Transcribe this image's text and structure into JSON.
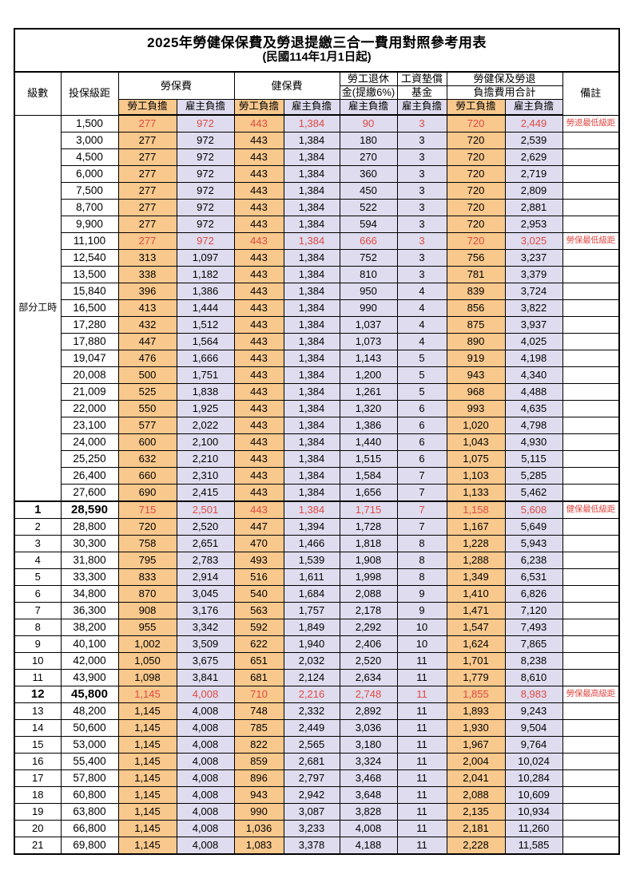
{
  "page": {
    "title": "2025年勞健保保費及勞退提繳三合一費用對照參考用表",
    "subtitle": "(民國114年1月1日起)"
  },
  "header": {
    "level": "級數",
    "bracket": "投保級距",
    "labor_insurance": "勞保費",
    "health_insurance": "健保費",
    "pension_line1": "勞工退休",
    "pension_line2": "金(提繳6%)",
    "wage_fund_line1": "工資墊償",
    "wage_fund_line2": "基金",
    "total_line1": "勞健保及勞退",
    "total_line2": "負擔費用合計",
    "remark": "備註",
    "employee_label": "勞工負擔",
    "employer_label": "雇主負擔"
  },
  "part_time_label": "部分工時",
  "part_time_row_count": 23,
  "colors": {
    "employee_bg": "#f8c88d",
    "employer_bg": "#dedcee",
    "highlight_red": "#e04a44",
    "border": "#000000"
  },
  "rows": [
    {
      "level": "",
      "bracket": "1,500",
      "li_emp": "277",
      "li_er": "972",
      "hi_emp": "443",
      "hi_er": "1,384",
      "pension": "90",
      "fund": "3",
      "tot_emp": "720",
      "tot_er": "2,449",
      "remark": "勞退最低級距",
      "red": true,
      "bold": false
    },
    {
      "level": "",
      "bracket": "3,000",
      "li_emp": "277",
      "li_er": "972",
      "hi_emp": "443",
      "hi_er": "1,384",
      "pension": "180",
      "fund": "3",
      "tot_emp": "720",
      "tot_er": "2,539",
      "remark": "",
      "red": false,
      "bold": false
    },
    {
      "level": "",
      "bracket": "4,500",
      "li_emp": "277",
      "li_er": "972",
      "hi_emp": "443",
      "hi_er": "1,384",
      "pension": "270",
      "fund": "3",
      "tot_emp": "720",
      "tot_er": "2,629",
      "remark": "",
      "red": false,
      "bold": false
    },
    {
      "level": "",
      "bracket": "6,000",
      "li_emp": "277",
      "li_er": "972",
      "hi_emp": "443",
      "hi_er": "1,384",
      "pension": "360",
      "fund": "3",
      "tot_emp": "720",
      "tot_er": "2,719",
      "remark": "",
      "red": false,
      "bold": false
    },
    {
      "level": "",
      "bracket": "7,500",
      "li_emp": "277",
      "li_er": "972",
      "hi_emp": "443",
      "hi_er": "1,384",
      "pension": "450",
      "fund": "3",
      "tot_emp": "720",
      "tot_er": "2,809",
      "remark": "",
      "red": false,
      "bold": false
    },
    {
      "level": "",
      "bracket": "8,700",
      "li_emp": "277",
      "li_er": "972",
      "hi_emp": "443",
      "hi_er": "1,384",
      "pension": "522",
      "fund": "3",
      "tot_emp": "720",
      "tot_er": "2,881",
      "remark": "",
      "red": false,
      "bold": false
    },
    {
      "level": "",
      "bracket": "9,900",
      "li_emp": "277",
      "li_er": "972",
      "hi_emp": "443",
      "hi_er": "1,384",
      "pension": "594",
      "fund": "3",
      "tot_emp": "720",
      "tot_er": "2,953",
      "remark": "",
      "red": false,
      "bold": false
    },
    {
      "level": "",
      "bracket": "11,100",
      "li_emp": "277",
      "li_er": "972",
      "hi_emp": "443",
      "hi_er": "1,384",
      "pension": "666",
      "fund": "3",
      "tot_emp": "720",
      "tot_er": "3,025",
      "remark": "勞保最低級距",
      "red": true,
      "bold": false
    },
    {
      "level": "",
      "bracket": "12,540",
      "li_emp": "313",
      "li_er": "1,097",
      "hi_emp": "443",
      "hi_er": "1,384",
      "pension": "752",
      "fund": "3",
      "tot_emp": "756",
      "tot_er": "3,237",
      "remark": "",
      "red": false,
      "bold": false
    },
    {
      "level": "",
      "bracket": "13,500",
      "li_emp": "338",
      "li_er": "1,182",
      "hi_emp": "443",
      "hi_er": "1,384",
      "pension": "810",
      "fund": "3",
      "tot_emp": "781",
      "tot_er": "3,379",
      "remark": "",
      "red": false,
      "bold": false
    },
    {
      "level": "",
      "bracket": "15,840",
      "li_emp": "396",
      "li_er": "1,386",
      "hi_emp": "443",
      "hi_er": "1,384",
      "pension": "950",
      "fund": "4",
      "tot_emp": "839",
      "tot_er": "3,724",
      "remark": "",
      "red": false,
      "bold": false
    },
    {
      "level": "",
      "bracket": "16,500",
      "li_emp": "413",
      "li_er": "1,444",
      "hi_emp": "443",
      "hi_er": "1,384",
      "pension": "990",
      "fund": "4",
      "tot_emp": "856",
      "tot_er": "3,822",
      "remark": "",
      "red": false,
      "bold": false
    },
    {
      "level": "",
      "bracket": "17,280",
      "li_emp": "432",
      "li_er": "1,512",
      "hi_emp": "443",
      "hi_er": "1,384",
      "pension": "1,037",
      "fund": "4",
      "tot_emp": "875",
      "tot_er": "3,937",
      "remark": "",
      "red": false,
      "bold": false
    },
    {
      "level": "",
      "bracket": "17,880",
      "li_emp": "447",
      "li_er": "1,564",
      "hi_emp": "443",
      "hi_er": "1,384",
      "pension": "1,073",
      "fund": "4",
      "tot_emp": "890",
      "tot_er": "4,025",
      "remark": "",
      "red": false,
      "bold": false
    },
    {
      "level": "",
      "bracket": "19,047",
      "li_emp": "476",
      "li_er": "1,666",
      "hi_emp": "443",
      "hi_er": "1,384",
      "pension": "1,143",
      "fund": "5",
      "tot_emp": "919",
      "tot_er": "4,198",
      "remark": "",
      "red": false,
      "bold": false
    },
    {
      "level": "",
      "bracket": "20,008",
      "li_emp": "500",
      "li_er": "1,751",
      "hi_emp": "443",
      "hi_er": "1,384",
      "pension": "1,200",
      "fund": "5",
      "tot_emp": "943",
      "tot_er": "4,340",
      "remark": "",
      "red": false,
      "bold": false
    },
    {
      "level": "",
      "bracket": "21,009",
      "li_emp": "525",
      "li_er": "1,838",
      "hi_emp": "443",
      "hi_er": "1,384",
      "pension": "1,261",
      "fund": "5",
      "tot_emp": "968",
      "tot_er": "4,488",
      "remark": "",
      "red": false,
      "bold": false
    },
    {
      "level": "",
      "bracket": "22,000",
      "li_emp": "550",
      "li_er": "1,925",
      "hi_emp": "443",
      "hi_er": "1,384",
      "pension": "1,320",
      "fund": "6",
      "tot_emp": "993",
      "tot_er": "4,635",
      "remark": "",
      "red": false,
      "bold": false
    },
    {
      "level": "",
      "bracket": "23,100",
      "li_emp": "577",
      "li_er": "2,022",
      "hi_emp": "443",
      "hi_er": "1,384",
      "pension": "1,386",
      "fund": "6",
      "tot_emp": "1,020",
      "tot_er": "4,798",
      "remark": "",
      "red": false,
      "bold": false
    },
    {
      "level": "",
      "bracket": "24,000",
      "li_emp": "600",
      "li_er": "2,100",
      "hi_emp": "443",
      "hi_er": "1,384",
      "pension": "1,440",
      "fund": "6",
      "tot_emp": "1,043",
      "tot_er": "4,930",
      "remark": "",
      "red": false,
      "bold": false
    },
    {
      "level": "",
      "bracket": "25,250",
      "li_emp": "632",
      "li_er": "2,210",
      "hi_emp": "443",
      "hi_er": "1,384",
      "pension": "1,515",
      "fund": "6",
      "tot_emp": "1,075",
      "tot_er": "5,115",
      "remark": "",
      "red": false,
      "bold": false
    },
    {
      "level": "",
      "bracket": "26,400",
      "li_emp": "660",
      "li_er": "2,310",
      "hi_emp": "443",
      "hi_er": "1,384",
      "pension": "1,584",
      "fund": "7",
      "tot_emp": "1,103",
      "tot_er": "5,285",
      "remark": "",
      "red": false,
      "bold": false
    },
    {
      "level": "",
      "bracket": "27,600",
      "li_emp": "690",
      "li_er": "2,415",
      "hi_emp": "443",
      "hi_er": "1,384",
      "pension": "1,656",
      "fund": "7",
      "tot_emp": "1,133",
      "tot_er": "5,462",
      "remark": "",
      "red": false,
      "bold": false
    },
    {
      "level": "1",
      "bracket": "28,590",
      "li_emp": "715",
      "li_er": "2,501",
      "hi_emp": "443",
      "hi_er": "1,384",
      "pension": "1,715",
      "fund": "7",
      "tot_emp": "1,158",
      "tot_er": "5,608",
      "remark": "健保最低級距",
      "red": true,
      "bold": true
    },
    {
      "level": "2",
      "bracket": "28,800",
      "li_emp": "720",
      "li_er": "2,520",
      "hi_emp": "447",
      "hi_er": "1,394",
      "pension": "1,728",
      "fund": "7",
      "tot_emp": "1,167",
      "tot_er": "5,649",
      "remark": "",
      "red": false,
      "bold": false
    },
    {
      "level": "3",
      "bracket": "30,300",
      "li_emp": "758",
      "li_er": "2,651",
      "hi_emp": "470",
      "hi_er": "1,466",
      "pension": "1,818",
      "fund": "8",
      "tot_emp": "1,228",
      "tot_er": "5,943",
      "remark": "",
      "red": false,
      "bold": false
    },
    {
      "level": "4",
      "bracket": "31,800",
      "li_emp": "795",
      "li_er": "2,783",
      "hi_emp": "493",
      "hi_er": "1,539",
      "pension": "1,908",
      "fund": "8",
      "tot_emp": "1,288",
      "tot_er": "6,238",
      "remark": "",
      "red": false,
      "bold": false
    },
    {
      "level": "5",
      "bracket": "33,300",
      "li_emp": "833",
      "li_er": "2,914",
      "hi_emp": "516",
      "hi_er": "1,611",
      "pension": "1,998",
      "fund": "8",
      "tot_emp": "1,349",
      "tot_er": "6,531",
      "remark": "",
      "red": false,
      "bold": false
    },
    {
      "level": "6",
      "bracket": "34,800",
      "li_emp": "870",
      "li_er": "3,045",
      "hi_emp": "540",
      "hi_er": "1,684",
      "pension": "2,088",
      "fund": "9",
      "tot_emp": "1,410",
      "tot_er": "6,826",
      "remark": "",
      "red": false,
      "bold": false
    },
    {
      "level": "7",
      "bracket": "36,300",
      "li_emp": "908",
      "li_er": "3,176",
      "hi_emp": "563",
      "hi_er": "1,757",
      "pension": "2,178",
      "fund": "9",
      "tot_emp": "1,471",
      "tot_er": "7,120",
      "remark": "",
      "red": false,
      "bold": false
    },
    {
      "level": "8",
      "bracket": "38,200",
      "li_emp": "955",
      "li_er": "3,342",
      "hi_emp": "592",
      "hi_er": "1,849",
      "pension": "2,292",
      "fund": "10",
      "tot_emp": "1,547",
      "tot_er": "7,493",
      "remark": "",
      "red": false,
      "bold": false
    },
    {
      "level": "9",
      "bracket": "40,100",
      "li_emp": "1,002",
      "li_er": "3,509",
      "hi_emp": "622",
      "hi_er": "1,940",
      "pension": "2,406",
      "fund": "10",
      "tot_emp": "1,624",
      "tot_er": "7,865",
      "remark": "",
      "red": false,
      "bold": false
    },
    {
      "level": "10",
      "bracket": "42,000",
      "li_emp": "1,050",
      "li_er": "3,675",
      "hi_emp": "651",
      "hi_er": "2,032",
      "pension": "2,520",
      "fund": "11",
      "tot_emp": "1,701",
      "tot_er": "8,238",
      "remark": "",
      "red": false,
      "bold": false
    },
    {
      "level": "11",
      "bracket": "43,900",
      "li_emp": "1,098",
      "li_er": "3,841",
      "hi_emp": "681",
      "hi_er": "2,124",
      "pension": "2,634",
      "fund": "11",
      "tot_emp": "1,779",
      "tot_er": "8,610",
      "remark": "",
      "red": false,
      "bold": false
    },
    {
      "level": "12",
      "bracket": "45,800",
      "li_emp": "1,145",
      "li_er": "4,008",
      "hi_emp": "710",
      "hi_er": "2,216",
      "pension": "2,748",
      "fund": "11",
      "tot_emp": "1,855",
      "tot_er": "8,983",
      "remark": "勞保最高級距",
      "red": true,
      "bold": true
    },
    {
      "level": "13",
      "bracket": "48,200",
      "li_emp": "1,145",
      "li_er": "4,008",
      "hi_emp": "748",
      "hi_er": "2,332",
      "pension": "2,892",
      "fund": "11",
      "tot_emp": "1,893",
      "tot_er": "9,243",
      "remark": "",
      "red": false,
      "bold": false
    },
    {
      "level": "14",
      "bracket": "50,600",
      "li_emp": "1,145",
      "li_er": "4,008",
      "hi_emp": "785",
      "hi_er": "2,449",
      "pension": "3,036",
      "fund": "11",
      "tot_emp": "1,930",
      "tot_er": "9,504",
      "remark": "",
      "red": false,
      "bold": false
    },
    {
      "level": "15",
      "bracket": "53,000",
      "li_emp": "1,145",
      "li_er": "4,008",
      "hi_emp": "822",
      "hi_er": "2,565",
      "pension": "3,180",
      "fund": "11",
      "tot_emp": "1,967",
      "tot_er": "9,764",
      "remark": "",
      "red": false,
      "bold": false
    },
    {
      "level": "16",
      "bracket": "55,400",
      "li_emp": "1,145",
      "li_er": "4,008",
      "hi_emp": "859",
      "hi_er": "2,681",
      "pension": "3,324",
      "fund": "11",
      "tot_emp": "2,004",
      "tot_er": "10,024",
      "remark": "",
      "red": false,
      "bold": false
    },
    {
      "level": "17",
      "bracket": "57,800",
      "li_emp": "1,145",
      "li_er": "4,008",
      "hi_emp": "896",
      "hi_er": "2,797",
      "pension": "3,468",
      "fund": "11",
      "tot_emp": "2,041",
      "tot_er": "10,284",
      "remark": "",
      "red": false,
      "bold": false
    },
    {
      "level": "18",
      "bracket": "60,800",
      "li_emp": "1,145",
      "li_er": "4,008",
      "hi_emp": "943",
      "hi_er": "2,942",
      "pension": "3,648",
      "fund": "11",
      "tot_emp": "2,088",
      "tot_er": "10,609",
      "remark": "",
      "red": false,
      "bold": false
    },
    {
      "level": "19",
      "bracket": "63,800",
      "li_emp": "1,145",
      "li_er": "4,008",
      "hi_emp": "990",
      "hi_er": "3,087",
      "pension": "3,828",
      "fund": "11",
      "tot_emp": "2,135",
      "tot_er": "10,934",
      "remark": "",
      "red": false,
      "bold": false
    },
    {
      "level": "20",
      "bracket": "66,800",
      "li_emp": "1,145",
      "li_er": "4,008",
      "hi_emp": "1,036",
      "hi_er": "3,233",
      "pension": "4,008",
      "fund": "11",
      "tot_emp": "2,181",
      "tot_er": "11,260",
      "remark": "",
      "red": false,
      "bold": false
    },
    {
      "level": "21",
      "bracket": "69,800",
      "li_emp": "1,145",
      "li_er": "4,008",
      "hi_emp": "1,083",
      "hi_er": "3,378",
      "pension": "4,188",
      "fund": "11",
      "tot_emp": "2,228",
      "tot_er": "11,585",
      "remark": "",
      "red": false,
      "bold": false
    }
  ]
}
